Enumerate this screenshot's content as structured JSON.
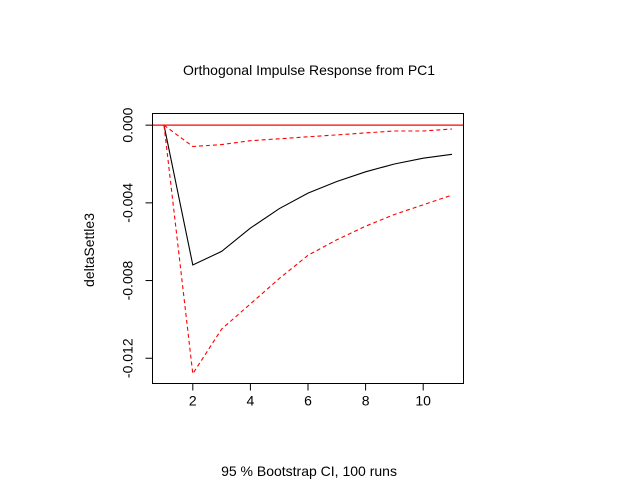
{
  "chart_data": {
    "type": "line",
    "title": "Orthogonal Impulse Response from PC1",
    "xlabel": "95 % Bootstrap CI,  100 runs",
    "ylabel": "deltaSettle3",
    "xlim": [
      0.6,
      11.4
    ],
    "ylim": [
      -0.0133,
      0.0006
    ],
    "x_ticks": [
      2,
      4,
      6,
      8,
      10
    ],
    "x_tick_labels": [
      "2",
      "4",
      "6",
      "8",
      "10"
    ],
    "y_ticks": [
      0.0,
      -0.004,
      -0.008,
      -0.012
    ],
    "y_tick_labels": [
      "0.000",
      "-0.004",
      "-0.008",
      "-0.012"
    ],
    "grid": false,
    "x": [
      1,
      2,
      3,
      4,
      5,
      6,
      7,
      8,
      9,
      10,
      11
    ],
    "series": [
      {
        "role": "response",
        "style": "solid",
        "color": "#000000",
        "values": [
          0.0,
          -0.0072,
          -0.0065,
          -0.0053,
          -0.0043,
          -0.0035,
          -0.0029,
          -0.0024,
          -0.002,
          -0.0017,
          -0.0015
        ]
      },
      {
        "role": "upper",
        "style": "dashed",
        "color": "#ff0000",
        "values": [
          0.0,
          -0.0011,
          -0.001,
          -0.0008,
          -0.0007,
          -0.0006,
          -0.0005,
          -0.0004,
          -0.0003,
          -0.0003,
          -0.0002
        ]
      },
      {
        "role": "lower",
        "style": "dashed",
        "color": "#ff0000",
        "values": [
          0.0,
          -0.0128,
          -0.0105,
          -0.0092,
          -0.0079,
          -0.0067,
          -0.0059,
          -0.0052,
          -0.0046,
          -0.0041,
          -0.0036
        ]
      }
    ],
    "reference_line": {
      "y": 0.0,
      "color": "#ff0000"
    }
  }
}
